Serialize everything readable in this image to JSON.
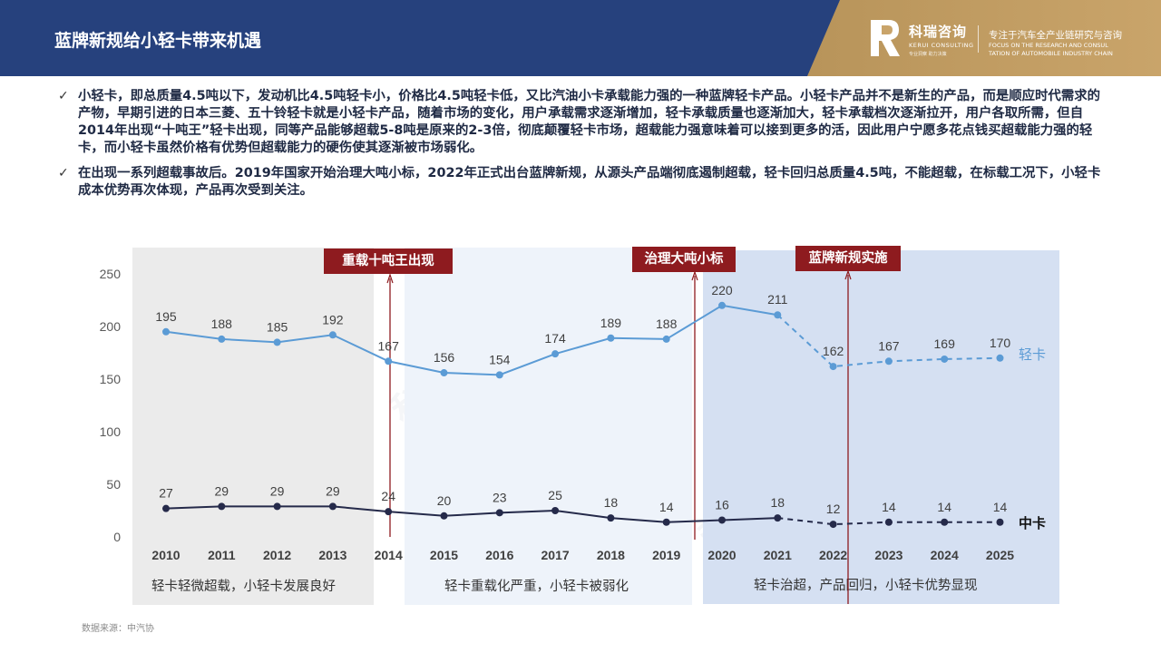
{
  "header": {
    "title": "蓝牌新规给小轻卡带来机遇",
    "brand_cn": "科瑞咨询",
    "brand_en": "KERUI CONSULTING",
    "brand_sub": "专业洞察 助力决策",
    "slogan_cn": "专注于汽车全产业链研究与咨询",
    "slogan_en1": "FOCUS ON THE RESEARCH AND CONSUL",
    "slogan_en2": "TATION OF AUTOMOBILE INDUSTRY CHAIN",
    "colors": {
      "blue": "#26417d",
      "gold": "#c9a46a"
    }
  },
  "bullets": [
    "小轻卡，即总质量4.5吨以下，发动机比4.5吨轻卡小，价格比4.5吨轻卡低，又比汽油小卡承载能力强的一种蓝牌轻卡产品。小轻卡产品并不是新生的产品，而是顺应时代需求的产物，早期引进的日本三菱、五十铃轻卡就是小轻卡产品，随着市场的变化，用户承载需求逐渐增加，轻卡承载质量也逐渐加大，轻卡承载档次逐渐拉开，用户各取所需，但自2014年出现“十吨王”轻卡出现，同等产品能够超载5-8吨是原来的2-3倍，彻底颠覆轻卡市场，超载能力强意味着可以接到更多的活，因此用户宁愿多花点钱买超载能力强的轻卡，而小轻卡虽然价格有优势但超载能力的硬伤使其逐渐被市场弱化。",
    "在出现一系列超载事故后。2019年国家开始治理大吨小标，2022年正式出台蓝牌新规，从源头产品端彻底遏制超载，轻卡回归总质量4.5吨，不能超载，在标载工况下，小轻卡成本优势再次体现，产品再次受到关注。"
  ],
  "check_icon": "✓",
  "panels": [
    {
      "label": "轻卡轻微超载，小轻卡发展良好"
    },
    {
      "label": "轻卡重载化严重，小轻卡被弱化"
    },
    {
      "label": "轻卡治超，产品回归，小轻卡优势显现"
    }
  ],
  "events": [
    {
      "label": "重载十吨王出现",
      "year": "2014"
    },
    {
      "label": "治理大吨小标",
      "year": "2019"
    },
    {
      "label": "蓝牌新规实施",
      "year": "2022"
    }
  ],
  "source": "数据来源：中汽协",
  "watermark": "科瑞咨询",
  "chart_data": {
    "type": "line",
    "categories": [
      "2010",
      "2011",
      "2012",
      "2013",
      "2014",
      "2015",
      "2016",
      "2017",
      "2018",
      "2019",
      "2020",
      "2021",
      "2022",
      "2023",
      "2024",
      "2025"
    ],
    "yticks": [
      "0",
      "50",
      "100",
      "150",
      "200",
      "250"
    ],
    "ylim": [
      0,
      250
    ],
    "series": [
      {
        "name": "轻卡",
        "color": "#5b9bd5",
        "values": [
          195,
          188,
          185,
          192,
          167,
          156,
          154,
          174,
          189,
          188,
          220,
          211,
          162,
          167,
          169,
          170
        ],
        "forecast_from": "2021"
      },
      {
        "name": "中卡",
        "color": "#252a4a",
        "values": [
          27,
          29,
          29,
          29,
          24,
          20,
          23,
          25,
          18,
          14,
          16,
          18,
          12,
          14,
          14,
          14
        ],
        "forecast_from": "2021"
      }
    ]
  }
}
